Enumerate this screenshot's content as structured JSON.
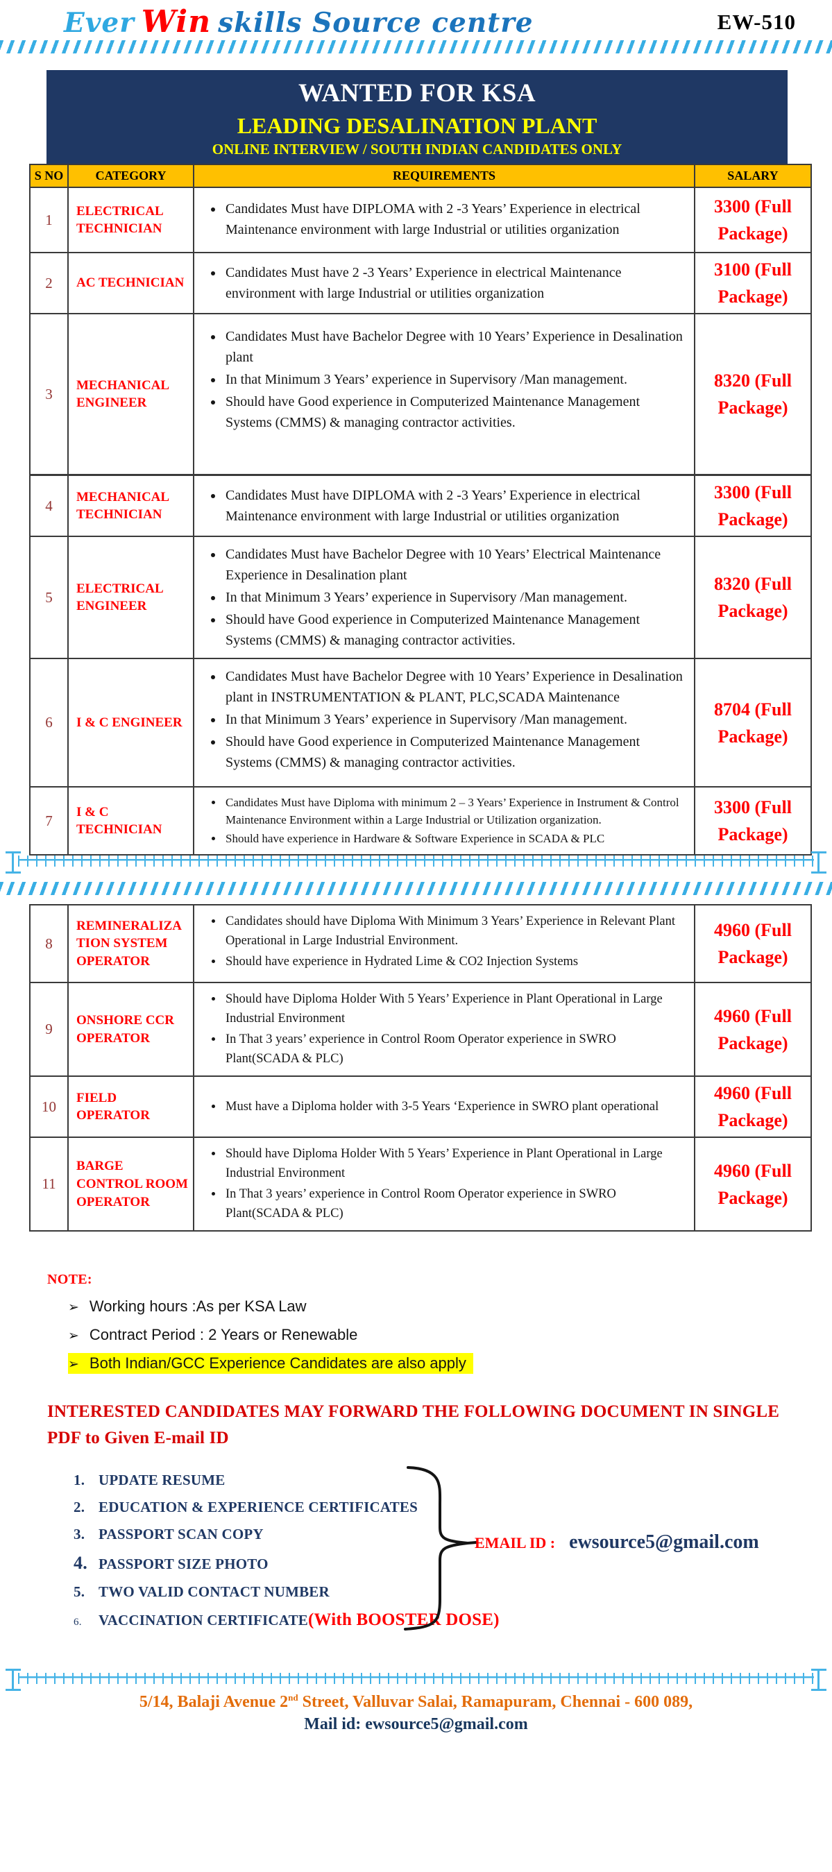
{
  "header": {
    "logo_part1": "Ever",
    "logo_part2": "Win",
    "logo_part3": "skills Source centre",
    "code": "EW-510"
  },
  "banner": {
    "line1": "WANTED FOR KSA",
    "line2": "LEADING DESALINATION PLANT",
    "line3": "ONLINE INTERVIEW / SOUTH INDIAN CANDIDATES ONLY"
  },
  "table": {
    "headers": {
      "sno": "S NO",
      "category": "CATEGORY",
      "requirements": "REQUIREMENTS",
      "salary": "SALARY"
    },
    "pages": [
      {
        "rows": [
          {
            "sno": "1",
            "category": "ELECTRICAL TECHNICIAN",
            "requirements": [
              "Candidates Must have DIPLOMA with  2 -3 Years’ Experience in electrical Maintenance environment with large  Industrial or utilities organization"
            ],
            "salary": "3300 (Full Package)"
          },
          {
            "sno": "2",
            "category": "AC TECHNICIAN",
            "requirements": [
              "Candidates Must have  2 -3 Years’ Experience in electrical Maintenance environment with large Industrial or utilities organization"
            ],
            "salary": "3100 (Full Package)"
          },
          {
            "sno": "3",
            "category": "MECHANICAL ENGINEER",
            "requirements": [
              "Candidates Must have Bachelor Degree with 10 Years’ Experience in Desalination plant",
              "In that Minimum 3 Years’ experience in Supervisory /Man management.",
              "Should have Good experience in Computerized Maintenance Management Systems (CMMS) & managing contractor activities."
            ],
            "salary": "8320 (Full Package)"
          },
          {
            "sno": "4",
            "category": "MECHANICAL TECHNICIAN",
            "requirements": [
              "Candidates Must have DIPLOMA with  2 -3 Years’ Experience in electrical Maintenance environment with large  Industrial or utilities organization"
            ],
            "salary": "3300 (Full Package)"
          },
          {
            "sno": "5",
            "category": "ELECTRICAL ENGINEER",
            "requirements": [
              "Candidates Must have Bachelor Degree with 10 Years’ Electrical Maintenance Experience in Desalination plant",
              "In that Minimum 3 Years’ experience in Supervisory /Man management.",
              "Should have Good experience in Computerized Maintenance Management Systems (CMMS) & managing contractor activities."
            ],
            "salary": "8320 (Full Package)"
          },
          {
            "sno": "6",
            "category": "I & C ENGINEER",
            "requirements": [
              "Candidates Must have Bachelor Degree with 10 Years’ Experience in Desalination plant in INSTRUMENTATION & PLANT, PLC,SCADA Maintenance",
              "In that Minimum 3 Years’ experience in Supervisory /Man management.",
              "Should have Good experience in Computerized Maintenance Management Systems (CMMS) & managing contractor activities."
            ],
            "salary": "8704 (Full Package)"
          },
          {
            "sno": "7",
            "category": "I & C TECHNICIAN",
            "requirements": [
              "Candidates Must have Diploma with minimum 2 – 3 Years’ Experience in Instrument & Control Maintenance Environment within a Large Industrial or Utilization organization.",
              " Should have experience in Hardware & Software Experience in SCADA & PLC"
            ],
            "salary": "3300 (Full Package)"
          }
        ]
      },
      {
        "rows": [
          {
            "sno": "8",
            "category": "REMINERALIZATION SYSTEM OPERATOR",
            "requirements": [
              "Candidates should have Diploma With Minimum 3 Years’ Experience in Relevant Plant Operational in Large Industrial Environment.",
              "Should have experience in Hydrated Lime & CO2 Injection Systems"
            ],
            "salary": "4960 (Full Package)"
          },
          {
            "sno": "9",
            "category": "ONSHORE CCR OPERATOR",
            "requirements": [
              "Should have Diploma Holder With  5 Years’ Experience in Plant Operational in Large Industrial Environment",
              "In That  3 years’ experience in Control Room Operator experience in SWRO Plant(SCADA & PLC)"
            ],
            "salary": "4960 (Full Package)"
          },
          {
            "sno": "10",
            "category": "FIELD OPERATOR",
            "requirements": [
              "Must have a Diploma holder with 3-5 Years ‘Experience in SWRO plant operational"
            ],
            "salary": "4960 (Full Package)"
          },
          {
            "sno": "11",
            "category": "BARGE CONTROL ROOM OPERATOR",
            "requirements": [
              "Should have Diploma Holder With  5 Years’ Experience in Plant Operational in Large Industrial Environment",
              "In That  3 years’ experience in Control Room Operator experience in SWRO Plant(SCADA & PLC)"
            ],
            "salary": "4960 (Full Package)"
          }
        ]
      }
    ]
  },
  "note": {
    "title": "NOTE:",
    "arrow": "➢",
    "items": [
      "Working hours :As per KSA Law",
      "Contract Period : 2 Years or Renewable",
      "Both Indian/GCC Experience Candidates are also apply"
    ]
  },
  "cta": {
    "line1": "INTERESTED CANDIDATES MAY FORWARD THE FOLLOWING DOCUMENT IN SINGLE",
    "line2": "PDF to Given E-mail ID"
  },
  "documents": [
    {
      "num": "1.",
      "text": "UPDATE RESUME",
      "suffix": ""
    },
    {
      "num": "2.",
      "text": "EDUCATION & EXPERIENCE CERTIFICATES",
      "suffix": ""
    },
    {
      "num": "3.",
      "text": "PASSPORT SCAN COPY",
      "suffix": ""
    },
    {
      "num": "4.",
      "text": "PASSPORT SIZE PHOTO",
      "suffix": ""
    },
    {
      "num": "5.",
      "text": "TWO VALID CONTACT NUMBER",
      "suffix": ""
    },
    {
      "num": "6.",
      "text": "VACCINATION CERTIFICATE",
      "suffix": "(With BOOSTER DOSE)"
    }
  ],
  "email": {
    "label": "EMAIL ID :",
    "value": "ewsource5@gmail.com"
  },
  "footer": {
    "address_prefix": "5/14, Balaji Avenue 2",
    "address_sup": "nd",
    "address_suffix": " Street, Valluvar Salai, Ramapuram, Chennai - 600 089,",
    "mail": "Mail id: ewsource5@gmail.com"
  },
  "colors": {
    "navy_banner": "#1F3864",
    "gold_header": "#FFC000",
    "red_text": "#FF0000",
    "maroon_number": "#943634",
    "light_blue_border": "#38AEE4",
    "orange_address": "#E36C0A",
    "dark_navy_text": "#17365D",
    "yellow_highlight": "#FFFF00"
  }
}
